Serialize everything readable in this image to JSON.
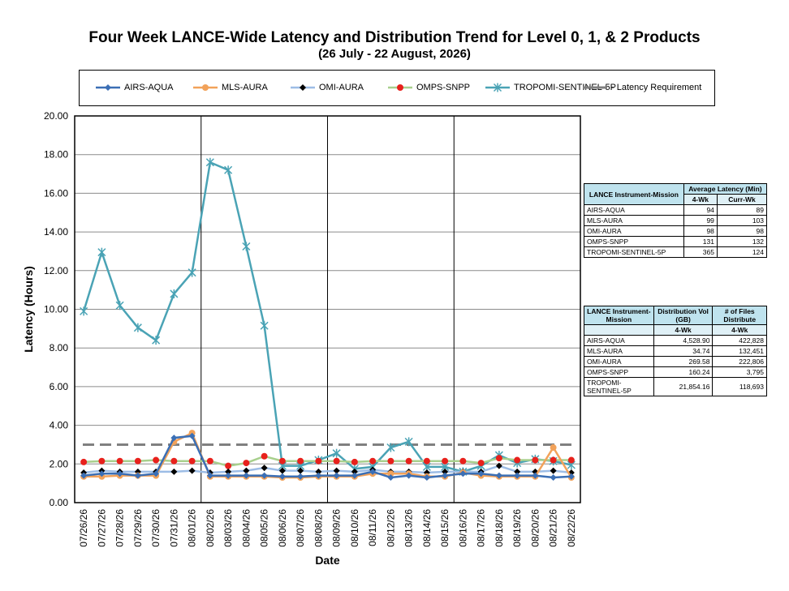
{
  "title": "Four Week LANCE-Wide Latency and Distribution Trend for Level 0, 1, & 2 Products",
  "subtitle": "(26 July  -  22 August, 2026)",
  "legend": [
    {
      "name": "AIRS-AQUA",
      "color": "#3b6fb5",
      "marker": "diamond"
    },
    {
      "name": "MLS-AURA",
      "color": "#f2a25a",
      "marker": "circle"
    },
    {
      "name": "OMI-AURA",
      "color": "#9dbde6",
      "marker": "diamond-black"
    },
    {
      "name": "OMPS-SNPP",
      "color": "#a8d08d",
      "marker": "circle-red"
    },
    {
      "name": "TROPOMI-SENTINEL-5P",
      "color": "#4aa3b5",
      "marker": "star"
    },
    {
      "name": "- Latency Requirement",
      "color": "#808080",
      "marker": "dash"
    }
  ],
  "chart_data": {
    "type": "line",
    "title": "Four Week LANCE-Wide Latency and Distribution Trend for Level 0, 1, & 2 Products",
    "xlabel": "Date",
    "ylabel": "Latency (Hours)",
    "ylim": [
      0,
      20
    ],
    "y_ticks": [
      "0.00",
      "2.00",
      "4.00",
      "6.00",
      "8.00",
      "10.00",
      "12.00",
      "14.00",
      "16.00",
      "18.00",
      "20.00"
    ],
    "grid": true,
    "categories": [
      "07/26/26",
      "07/27/26",
      "07/28/26",
      "07/29/26",
      "07/30/26",
      "07/31/26",
      "08/01/26",
      "08/02/26",
      "08/03/26",
      "08/04/26",
      "08/05/26",
      "08/06/26",
      "08/07/26",
      "08/08/26",
      "08/09/26",
      "08/10/26",
      "08/11/26",
      "08/12/26",
      "08/13/26",
      "08/14/26",
      "08/15/26",
      "08/16/26",
      "08/17/26",
      "08/18/26",
      "08/19/26",
      "08/20/26",
      "08/21/26",
      "08/22/26"
    ],
    "week_separators_after": [
      "08/01/26",
      "08/08/26",
      "08/15/26"
    ],
    "series": [
      {
        "name": "AIRS-AQUA",
        "color": "#3b6fb5",
        "values": [
          1.4,
          1.5,
          1.5,
          1.4,
          1.5,
          3.35,
          3.45,
          1.4,
          1.4,
          1.4,
          1.4,
          1.35,
          1.35,
          1.4,
          1.4,
          1.4,
          1.6,
          1.3,
          1.4,
          1.3,
          1.4,
          1.5,
          1.5,
          1.4,
          1.4,
          1.4,
          1.3,
          1.35
        ]
      },
      {
        "name": "MLS-AURA",
        "color": "#f2a25a",
        "values": [
          1.35,
          1.35,
          1.4,
          1.4,
          1.4,
          3.15,
          3.6,
          1.35,
          1.35,
          1.35,
          1.35,
          1.3,
          1.3,
          1.35,
          1.35,
          1.35,
          1.5,
          1.5,
          1.5,
          1.35,
          1.35,
          1.55,
          1.4,
          1.35,
          1.35,
          1.35,
          2.85,
          1.3
        ]
      },
      {
        "name": "OMI-AURA",
        "color": "#9dbde6",
        "values": [
          1.55,
          1.65,
          1.6,
          1.6,
          1.6,
          1.6,
          1.65,
          1.55,
          1.6,
          1.65,
          1.8,
          1.65,
          1.65,
          1.6,
          1.65,
          1.6,
          1.7,
          1.6,
          1.6,
          1.55,
          1.6,
          1.6,
          1.6,
          1.9,
          1.6,
          1.6,
          1.65,
          1.55
        ]
      },
      {
        "name": "OMPS-SNPP",
        "color": "#a8d08d",
        "values": [
          2.1,
          2.15,
          2.15,
          2.15,
          2.2,
          2.15,
          2.15,
          2.15,
          1.9,
          2.05,
          2.4,
          2.15,
          2.15,
          2.15,
          2.15,
          2.1,
          2.15,
          2.15,
          2.15,
          2.15,
          2.15,
          2.15,
          2.05,
          2.3,
          2.2,
          2.2,
          2.2,
          2.2
        ]
      },
      {
        "name": "TROPOMI-SENTINEL-5P",
        "color": "#4aa3b5",
        "values": [
          9.9,
          12.95,
          10.2,
          9.05,
          8.4,
          10.8,
          11.9,
          17.6,
          17.2,
          13.25,
          9.15,
          1.9,
          1.9,
          2.2,
          2.55,
          1.75,
          1.85,
          2.85,
          3.15,
          1.85,
          1.85,
          1.6,
          1.9,
          2.45,
          2.05,
          2.25,
          2.15,
          1.95
        ]
      }
    ],
    "reference_line": {
      "name": "Latency Requirement",
      "value": 3.0,
      "color": "#808080"
    }
  },
  "latency_table": {
    "header_col1": "LANCE Instrument-Mission",
    "header_group": "Average Latency (Min)",
    "subheaders": [
      "4-Wk",
      "Curr-Wk"
    ],
    "rows": [
      [
        "AIRS-AQUA",
        "94",
        "89"
      ],
      [
        "MLS-AURA",
        "99",
        "103"
      ],
      [
        "OMI-AURA",
        "98",
        "98"
      ],
      [
        "OMPS-SNPP",
        "131",
        "132"
      ],
      [
        "TROPOMI-SENTINEL-5P",
        "365",
        "124"
      ]
    ]
  },
  "distribution_table": {
    "header_col1": "LANCE Instrument-Mission",
    "header_col2": "Distribution Vol (GB)",
    "header_col3": "# of Files Distribute",
    "subheaders": [
      "4-Wk",
      "4-Wk"
    ],
    "rows": [
      [
        "AIRS-AQUA",
        "4,528.90",
        "422,828"
      ],
      [
        "MLS-AURA",
        "34.74",
        "132,451"
      ],
      [
        "OMI-AURA",
        "269.58",
        "222,806"
      ],
      [
        "OMPS-SNPP",
        "160.24",
        "3,795"
      ],
      [
        "TROPOMI-SENTINEL-5P",
        "21,854.16",
        "118,693"
      ]
    ]
  }
}
